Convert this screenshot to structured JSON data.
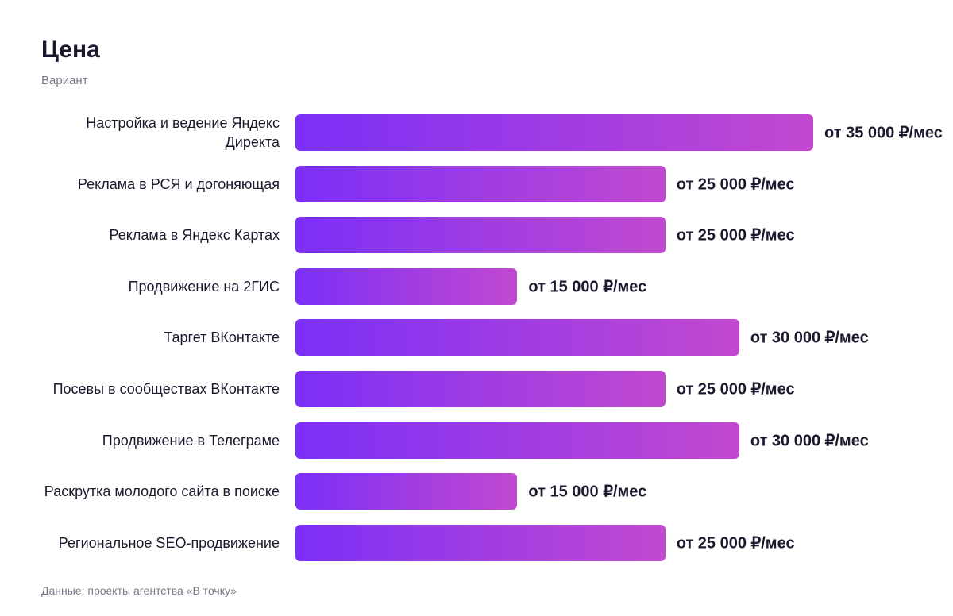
{
  "chart_data": {
    "type": "bar",
    "orientation": "horizontal",
    "title": "Цена",
    "subtitle": "Вариант",
    "categories": [
      "Настройка и ведение Яндекс Директа",
      "Реклама в РСЯ и догоняющая",
      "Реклама в Яндекс Картах",
      "Продвижение на 2ГИС",
      "Таргет ВКонтакте",
      "Посевы в сообществах ВКонтакте",
      "Продвижение в Телеграме",
      "Раскрутка молодого сайта в поиске",
      "Региональное SEO-продвижение"
    ],
    "values": [
      35000,
      25000,
      25000,
      15000,
      30000,
      25000,
      30000,
      15000,
      25000
    ],
    "value_labels": [
      "от 35 000 ₽/мес",
      "от 25 000 ₽/мес",
      "от 25 000 ₽/мес",
      "от 15 000 ₽/мес",
      "от 30 000 ₽/мес",
      "от 25 000 ₽/мес",
      "от 30 000 ₽/мес",
      "от 15 000 ₽/мес",
      "от 25 000 ₽/мес"
    ],
    "source": "Данные: проекты агентства «В точку»"
  }
}
